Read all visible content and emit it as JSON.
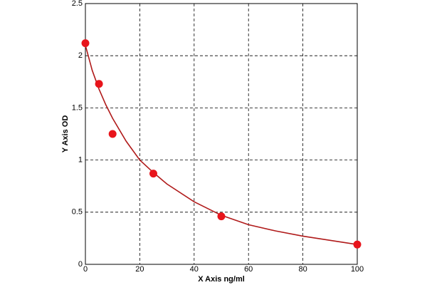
{
  "chart_data": {
    "type": "scatter",
    "x_label": "X Axis ng/ml",
    "y_label": "Y Axis OD",
    "x": [
      0,
      5,
      10,
      25,
      50,
      100
    ],
    "values": [
      2.12,
      1.73,
      1.25,
      0.87,
      0.46,
      0.19
    ],
    "color": "#e8141b",
    "fit": {
      "color": "#b01a1a",
      "x": [
        0,
        2.5,
        5,
        7.5,
        10,
        15,
        20,
        25,
        30,
        40,
        50,
        60,
        70,
        80,
        90,
        100
      ],
      "values": [
        2.1,
        1.86,
        1.68,
        1.53,
        1.4,
        1.18,
        1.0,
        0.88,
        0.77,
        0.6,
        0.47,
        0.38,
        0.32,
        0.27,
        0.23,
        0.19
      ]
    },
    "xlim": [
      0,
      100
    ],
    "xticks": [
      0,
      20,
      40,
      60,
      80,
      100
    ],
    "ylim": [
      0,
      2.5
    ],
    "yticks": [
      0,
      0.5,
      1,
      1.5,
      2,
      2.5
    ],
    "grid": true
  }
}
